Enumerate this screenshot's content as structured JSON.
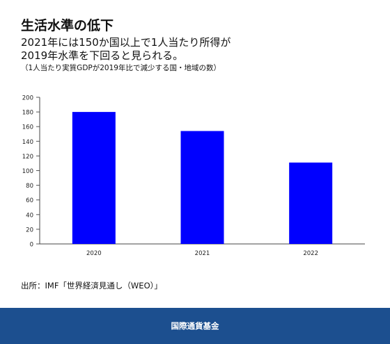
{
  "header": {
    "title": "生活水準の低下",
    "subtitle_line1": "2021年には150か国以上で1人当たり所得が",
    "subtitle_line2": "2019年水準を下回ると見られる。",
    "note": "（1人当たり実質GDPが2019年比で減少する国・地域の数）"
  },
  "chart_data": {
    "type": "bar",
    "categories": [
      "2020",
      "2021",
      "2022"
    ],
    "values": [
      180,
      154,
      111
    ],
    "ylim": [
      0,
      200
    ],
    "yticks": [
      0,
      20,
      40,
      60,
      80,
      100,
      120,
      140,
      160,
      180,
      200
    ],
    "title": "",
    "xlabel": "",
    "ylabel": "",
    "grid": false,
    "bar_color": "#0000ff"
  },
  "source": "出所：IMF「世界経済見通し（WEO）」",
  "footer": {
    "label": "国際通貨基金",
    "color": "#1c4f8f"
  }
}
